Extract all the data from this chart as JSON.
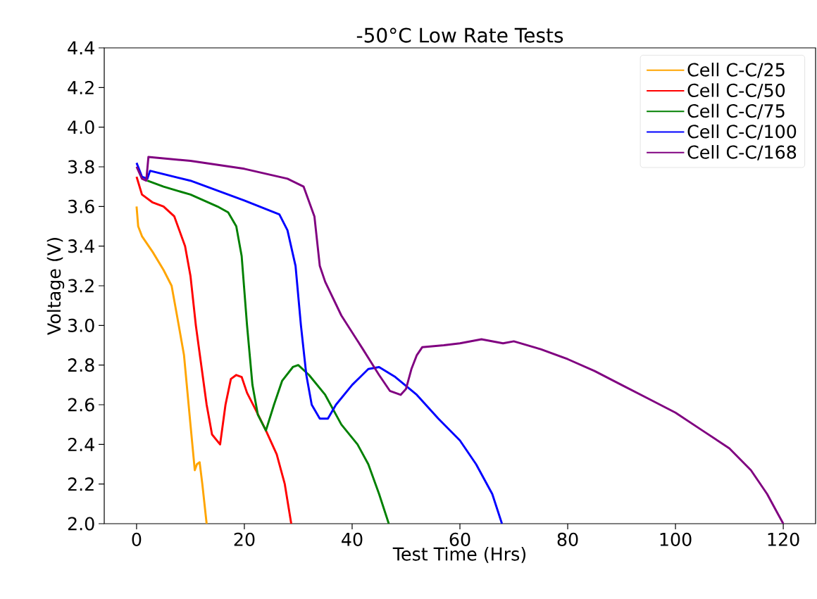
{
  "chart_data": {
    "type": "line",
    "title": "-50°C Low Rate Tests",
    "xlabel": "Test Time (Hrs)",
    "ylabel": "Voltage (V)",
    "xlim": [
      -6,
      126
    ],
    "ylim": [
      2.0,
      4.4
    ],
    "xticks": [
      0,
      20,
      40,
      60,
      80,
      100,
      120
    ],
    "yticks": [
      {
        "value": 2.0,
        "label": "2.0"
      },
      {
        "value": 2.2,
        "label": "2.2"
      },
      {
        "value": 2.4,
        "label": "2.4"
      },
      {
        "value": 2.6,
        "label": "2.6"
      },
      {
        "value": 2.8,
        "label": "2.8"
      },
      {
        "value": 3.0,
        "label": "3.0"
      },
      {
        "value": 3.2,
        "label": "3.2"
      },
      {
        "value": 3.4,
        "label": "3.4"
      },
      {
        "value": 3.6,
        "label": "3.6"
      },
      {
        "value": 3.8,
        "label": "3.8"
      },
      {
        "value": 4.0,
        "label": "4.0"
      },
      {
        "value": 4.2,
        "label": "4.2"
      },
      {
        "value": 4.4,
        "label": "4.4"
      }
    ],
    "legend": "top right",
    "grid": false,
    "marker": "none",
    "line_style": "solid",
    "series": [
      {
        "name": "Cell C-C/25",
        "color": "#ffa500",
        "x": [
          0,
          0.3,
          1,
          3,
          5,
          6.5,
          7.5,
          8.8,
          10,
          10.8,
          11.2,
          11.7,
          12.2,
          13
        ],
        "values": [
          3.6,
          3.5,
          3.45,
          3.37,
          3.28,
          3.2,
          3.05,
          2.85,
          2.5,
          2.27,
          2.3,
          2.31,
          2.2,
          2.0
        ]
      },
      {
        "name": "Cell C-C/50",
        "color": "#ff0000",
        "x": [
          0,
          1,
          3,
          5,
          7,
          9,
          10,
          11,
          12,
          13,
          14,
          15.5,
          16.5,
          17.5,
          18.5,
          19.5,
          20.5,
          22,
          24,
          26,
          27.5,
          28.7
        ],
        "values": [
          3.75,
          3.66,
          3.62,
          3.6,
          3.55,
          3.4,
          3.25,
          3.0,
          2.8,
          2.6,
          2.45,
          2.4,
          2.6,
          2.73,
          2.75,
          2.74,
          2.66,
          2.58,
          2.47,
          2.35,
          2.2,
          2.0
        ]
      },
      {
        "name": "Cell C-C/75",
        "color": "#008000",
        "x": [
          2,
          5,
          10,
          15,
          17,
          18.5,
          19.5,
          20.5,
          21.5,
          22.5,
          24,
          25.5,
          27,
          29,
          30,
          32,
          35,
          38,
          41,
          43,
          45,
          46.8
        ],
        "values": [
          3.73,
          3.7,
          3.66,
          3.6,
          3.57,
          3.5,
          3.35,
          3.0,
          2.7,
          2.55,
          2.47,
          2.6,
          2.72,
          2.79,
          2.8,
          2.75,
          2.65,
          2.5,
          2.4,
          2.3,
          2.15,
          2.0
        ]
      },
      {
        "name": "Cell C-C/100",
        "color": "#0000ff",
        "x": [
          0,
          1,
          2,
          2.5,
          10,
          20,
          26.5,
          28,
          29.5,
          30.5,
          31.5,
          32.5,
          34,
          35.5,
          37,
          40,
          43,
          45,
          48,
          52,
          56,
          60,
          63,
          66,
          67.8
        ],
        "values": [
          3.82,
          3.75,
          3.74,
          3.78,
          3.73,
          3.63,
          3.56,
          3.48,
          3.3,
          3.0,
          2.75,
          2.6,
          2.53,
          2.53,
          2.6,
          2.7,
          2.78,
          2.79,
          2.74,
          2.65,
          2.53,
          2.42,
          2.3,
          2.15,
          2.0
        ]
      },
      {
        "name": "Cell C-C/168",
        "color": "#800080",
        "x": [
          0,
          1,
          1.8,
          2.2,
          10,
          20,
          28,
          31,
          33,
          34,
          35,
          38,
          42,
          45,
          47,
          49,
          50,
          51,
          52,
          53,
          57,
          60,
          64,
          68,
          70,
          75,
          80,
          85,
          90,
          95,
          100,
          105,
          110,
          114,
          117,
          119,
          120
        ],
        "values": [
          3.8,
          3.74,
          3.73,
          3.85,
          3.83,
          3.79,
          3.74,
          3.7,
          3.55,
          3.3,
          3.22,
          3.05,
          2.88,
          2.75,
          2.67,
          2.65,
          2.68,
          2.78,
          2.85,
          2.89,
          2.9,
          2.91,
          2.93,
          2.91,
          2.92,
          2.88,
          2.83,
          2.77,
          2.7,
          2.63,
          2.56,
          2.47,
          2.38,
          2.27,
          2.15,
          2.05,
          2.0
        ]
      }
    ]
  }
}
